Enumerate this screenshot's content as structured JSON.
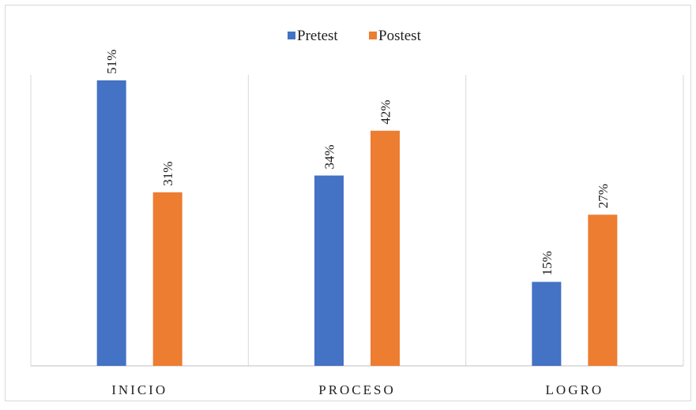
{
  "chart_data": {
    "type": "bar",
    "categories": [
      "INICIO",
      "PROCESO",
      "LOGRO"
    ],
    "series": [
      {
        "name": "Pretest",
        "values": [
          51,
          34,
          15
        ],
        "labels": [
          "51%",
          "34%",
          "15%"
        ]
      },
      {
        "name": "Postest",
        "values": [
          31,
          42,
          27
        ],
        "labels": [
          "31%",
          "42%",
          "27%"
        ]
      }
    ],
    "title": "",
    "xlabel": "",
    "ylabel": "",
    "ylim": [
      0,
      60
    ],
    "grid": "vertical category separators",
    "legend_position": "top-center",
    "colors": {
      "Pretest": "#4472c4",
      "Postest": "#ed7d31"
    }
  }
}
